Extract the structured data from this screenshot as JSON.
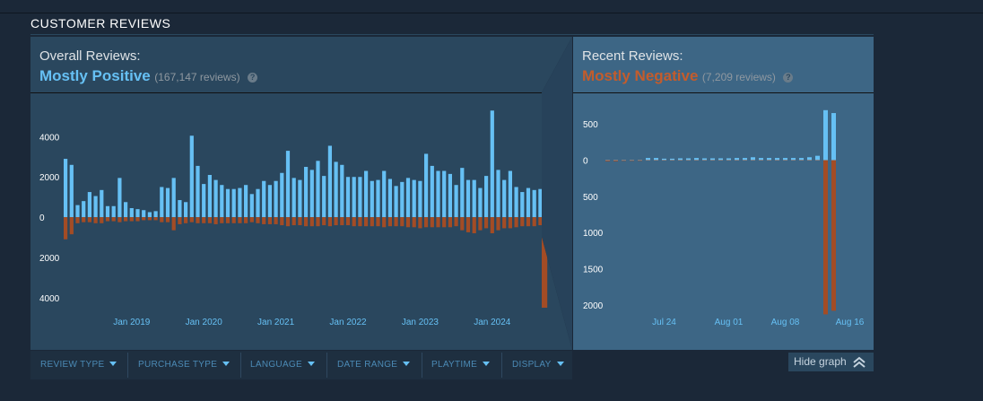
{
  "section": {
    "title": "CUSTOMER REVIEWS"
  },
  "overall": {
    "label": "Overall Reviews:",
    "rating": "Mostly Positive",
    "count": "(167,147 reviews)",
    "help": "?"
  },
  "recent": {
    "label": "Recent Reviews:",
    "rating": "Mostly Negative",
    "count": "(7,209 reviews)",
    "help": "?"
  },
  "filters": [
    {
      "label": "REVIEW TYPE"
    },
    {
      "label": "PURCHASE TYPE"
    },
    {
      "label": "LANGUAGE"
    },
    {
      "label": "DATE RANGE"
    },
    {
      "label": "PLAYTIME"
    },
    {
      "label": "DISPLAY"
    }
  ],
  "hide_graph": {
    "label": "Hide graph"
  },
  "colors": {
    "positive": "#66c0f4",
    "negative": "#a34c25",
    "highlight": "#4b7a9a",
    "tick_text": "#ffffff",
    "date_text": "#66c0f4"
  },
  "chart_data": [
    {
      "type": "bar",
      "name": "overall",
      "x_tick_labels": [
        "Jan 2019",
        "Jan 2020",
        "Jan 2021",
        "Jan 2022",
        "Jan 2023",
        "Jan 2024"
      ],
      "x_tick_positions": [
        11,
        23,
        35,
        47,
        59,
        71
      ],
      "y_tick_labels": [
        "4000",
        "2000",
        "0",
        "2000",
        "4000"
      ],
      "y_tick_values": [
        4000,
        2000,
        0,
        -2000,
        -4000
      ],
      "ylim": [
        -4500,
        5400
      ],
      "highlight_last": true,
      "positive": [
        2900,
        2600,
        600,
        800,
        1250,
        1050,
        1350,
        550,
        550,
        1950,
        750,
        450,
        400,
        350,
        250,
        300,
        1500,
        1450,
        1950,
        850,
        750,
        4050,
        2550,
        1650,
        2100,
        1850,
        1600,
        1400,
        1400,
        1450,
        1600,
        1150,
        1400,
        1800,
        1600,
        1800,
        2200,
        3300,
        1950,
        1850,
        2500,
        2350,
        2800,
        2050,
        3550,
        2750,
        2600,
        2000,
        2000,
        2000,
        2300,
        1800,
        1850,
        2300,
        1900,
        1550,
        1750,
        1950,
        1850,
        1800,
        3150,
        2550,
        2300,
        2300,
        2150,
        1600,
        2450,
        1850,
        1850,
        1450,
        2050,
        5300,
        2350,
        1850,
        2300,
        1500,
        1250,
        1450,
        1350,
        1400,
        1950
      ],
      "negative": [
        -1100,
        -850,
        -300,
        -250,
        -250,
        -300,
        -300,
        -200,
        -200,
        -250,
        -200,
        -200,
        -200,
        -150,
        -150,
        -150,
        -250,
        -250,
        -650,
        -350,
        -300,
        -250,
        -300,
        -300,
        -300,
        -350,
        -300,
        -300,
        -300,
        -300,
        -300,
        -250,
        -300,
        -350,
        -350,
        -350,
        -400,
        -450,
        -400,
        -400,
        -450,
        -450,
        -450,
        -400,
        -450,
        -400,
        -400,
        -400,
        -450,
        -450,
        -450,
        -450,
        -450,
        -500,
        -450,
        -450,
        -450,
        -500,
        -500,
        -550,
        -500,
        -500,
        -500,
        -500,
        -500,
        -450,
        -650,
        -750,
        -800,
        -650,
        -550,
        -800,
        -650,
        -550,
        -550,
        -500,
        -450,
        -450,
        -450,
        -400,
        -650
      ],
      "highlight_negative": -4500
    },
    {
      "type": "bar",
      "name": "recent",
      "x_tick_labels": [
        "Jul 24",
        "Aug 01",
        "Aug 08",
        "Aug 16"
      ],
      "x_tick_positions": [
        7,
        15,
        22,
        30
      ],
      "y_tick_labels": [
        "500",
        "0",
        "500",
        "1000",
        "1500",
        "2000"
      ],
      "y_tick_values": [
        500,
        0,
        -500,
        -1000,
        -1500,
        -2000
      ],
      "ylim": [
        -2100,
        700
      ],
      "positive": [
        5,
        5,
        5,
        5,
        5,
        30,
        30,
        20,
        20,
        25,
        25,
        30,
        25,
        25,
        25,
        25,
        30,
        30,
        40,
        30,
        30,
        30,
        30,
        30,
        30,
        40,
        60,
        690,
        650
      ],
      "negative": [
        -15,
        -15,
        -10,
        -10,
        -10,
        -5,
        -5,
        -5,
        -5,
        -5,
        -5,
        -5,
        -5,
        -5,
        -5,
        -5,
        -5,
        -5,
        -5,
        -5,
        -5,
        -5,
        -5,
        -5,
        -5,
        -5,
        -5,
        -2130,
        -2080
      ]
    }
  ]
}
